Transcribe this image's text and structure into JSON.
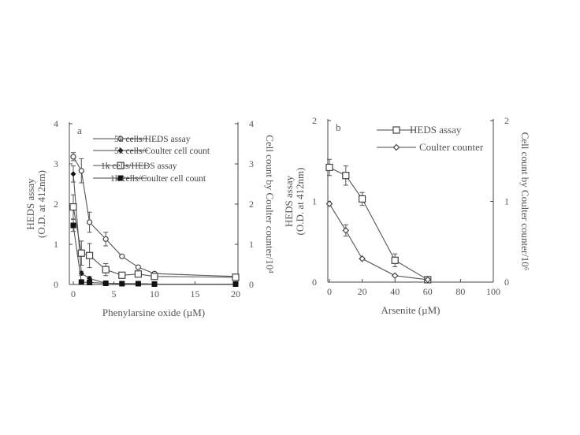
{
  "chart_data": [
    {
      "type": "line",
      "panel_label": "a",
      "xlabel": "Phenylarsine oxide (µM)",
      "ylabel_line1": "HEDS assay",
      "ylabel_line2": "(O.D. at 412nm)",
      "y2label": "Cell count by Coulter counter/10⁴",
      "xlim": [
        0,
        20
      ],
      "ylim": [
        0,
        4
      ],
      "y2lim": [
        0,
        4
      ],
      "xticks": [
        "0",
        "5",
        "10",
        "15",
        "20"
      ],
      "yticks": [
        "0",
        "1",
        "2",
        "3",
        "4"
      ],
      "y2ticks": [
        "0",
        "1",
        "2",
        "3",
        "4"
      ],
      "legend_position": "top-right",
      "x": [
        0,
        1,
        2,
        4,
        6,
        8,
        10,
        20
      ],
      "series": [
        {
          "name": "5k cells/HEDS assay",
          "marker": "open-circle",
          "values": [
            3.18,
            2.83,
            1.55,
            1.13,
            0.7,
            0.43,
            0.27,
            0.2
          ],
          "errors": [
            0.1,
            0.3,
            0.25,
            0.17,
            0.03,
            0.03,
            0.03,
            0.02
          ]
        },
        {
          "name": "5k cells/Coulter cell count",
          "marker": "filled-diamond",
          "values": [
            2.75,
            0.28,
            0.15,
            0.03,
            0.02,
            0.02,
            0.01,
            0.01
          ],
          "errors": [
            0.2,
            0.05,
            0.05,
            0.01,
            0.01,
            0.01,
            0.01,
            0.01
          ]
        },
        {
          "name": "1k cells/HEDS assay",
          "marker": "open-square",
          "values": [
            1.93,
            0.78,
            0.72,
            0.37,
            0.23,
            0.26,
            0.2,
            0.18
          ],
          "errors": [
            0.3,
            0.3,
            0.3,
            0.15,
            0.03,
            0.03,
            0.03,
            0.02
          ]
        },
        {
          "name": "1k cells/Coulter cell count",
          "marker": "filled-square",
          "values": [
            1.47,
            0.06,
            0.05,
            0.03,
            0.02,
            0.02,
            0.01,
            0.01
          ],
          "errors": [
            0.15,
            0.03,
            0.03,
            0.01,
            0.01,
            0.01,
            0.01,
            0.01
          ]
        }
      ]
    },
    {
      "type": "line",
      "panel_label": "b",
      "xlabel": "Arsenite (µM)",
      "ylabel_line1": "HEDS assay",
      "ylabel_line2": "(O.D. at 412nm)",
      "y2label": "Cell count by Coulter counter/10⁶",
      "xlim": [
        0,
        100
      ],
      "ylim": [
        0,
        2
      ],
      "y2lim": [
        0,
        2
      ],
      "xticks": [
        "0",
        "20",
        "40",
        "60",
        "80",
        "100"
      ],
      "yticks": [
        "0",
        "1",
        "2"
      ],
      "y2ticks": [
        "0",
        "1",
        "2"
      ],
      "legend_position": "top-right",
      "x": [
        0,
        10,
        20,
        40,
        60
      ],
      "series": [
        {
          "name": "HEDS assay",
          "marker": "open-square",
          "values": [
            1.42,
            1.32,
            1.03,
            0.27,
            0.03
          ],
          "errors": [
            0.1,
            0.12,
            0.08,
            0.08,
            0.01
          ]
        },
        {
          "name": "Coulter counter",
          "marker": "open-diamond",
          "values": [
            0.97,
            0.64,
            0.29,
            0.08,
            0.03
          ],
          "errors": [
            0.02,
            0.07,
            0.02,
            0.01,
            0.01
          ]
        }
      ]
    }
  ]
}
